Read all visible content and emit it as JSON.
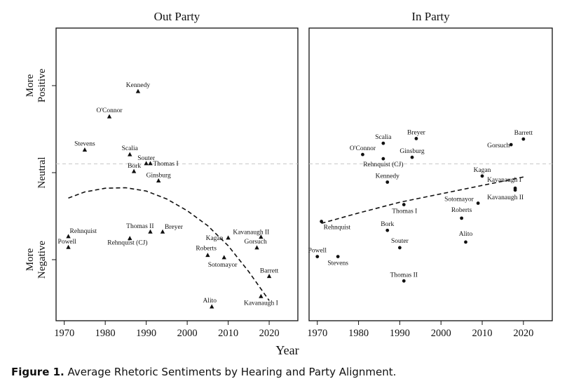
{
  "chart_data": [
    {
      "type": "scatter",
      "title": "Out Party",
      "marker": "triangle",
      "xlabel": "Year",
      "xlim": [
        1968,
        2027
      ],
      "ylim": [
        -3.35,
        2.9
      ],
      "xticks": [
        1970,
        1980,
        1990,
        2000,
        2010,
        2020
      ],
      "ytick_labels": [
        "More Positive",
        "Neutral",
        "More Negative"
      ],
      "neutral_line": 0,
      "points": [
        {
          "label": "Kennedy",
          "x": 1988,
          "y": 1.55
        },
        {
          "label": "O'Connor",
          "x": 1981,
          "y": 1.01
        },
        {
          "label": "Stevens",
          "x": 1975,
          "y": 0.3
        },
        {
          "label": "Scalia",
          "x": 1986,
          "y": 0.2
        },
        {
          "label": "Souter",
          "x": 1990,
          "y": 0.01
        },
        {
          "label": "Thomas I",
          "x": 1991,
          "y": 0.01
        },
        {
          "label": "Bork",
          "x": 1987,
          "y": -0.16
        },
        {
          "label": "Ginsburg",
          "x": 1993,
          "y": -0.36
        },
        {
          "label": "Rehnquist",
          "x": 1971,
          "y": -1.55
        },
        {
          "label": "Powell",
          "x": 1971,
          "y": -1.78
        },
        {
          "label": "Thomas II",
          "x": 1991,
          "y": -1.45
        },
        {
          "label": "Breyer",
          "x": 1994,
          "y": -1.45
        },
        {
          "label": "Rehnquist (CJ)",
          "x": 1986,
          "y": -1.59
        },
        {
          "label": "Kagan",
          "x": 2010,
          "y": -1.58
        },
        {
          "label": "Kavanaugh II",
          "x": 2018,
          "y": -1.56
        },
        {
          "label": "Roberts",
          "x": 2005,
          "y": -1.95
        },
        {
          "label": "Gorsuch",
          "x": 2017,
          "y": -1.79
        },
        {
          "label": "Sotomayor",
          "x": 2009,
          "y": -2.0
        },
        {
          "label": "Barrett",
          "x": 2020,
          "y": -2.4
        },
        {
          "label": "Alito",
          "x": 2006,
          "y": -3.05
        },
        {
          "label": "Kavanaugh I",
          "x": 2018,
          "y": -2.83
        }
      ],
      "trend": [
        {
          "x": 1971,
          "y": -0.73
        },
        {
          "x": 1975,
          "y": -0.6
        },
        {
          "x": 1980,
          "y": -0.52
        },
        {
          "x": 1985,
          "y": -0.51
        },
        {
          "x": 1990,
          "y": -0.58
        },
        {
          "x": 1995,
          "y": -0.75
        },
        {
          "x": 2000,
          "y": -1.0
        },
        {
          "x": 2005,
          "y": -1.32
        },
        {
          "x": 2010,
          "y": -1.75
        },
        {
          "x": 2015,
          "y": -2.3
        },
        {
          "x": 2020,
          "y": -2.92
        }
      ]
    },
    {
      "type": "scatter",
      "title": "In Party",
      "marker": "circle",
      "xlabel": "Year",
      "xlim": [
        1968,
        2027
      ],
      "ylim": [
        -3.35,
        2.9
      ],
      "xticks": [
        1970,
        1980,
        1990,
        2000,
        2010,
        2020
      ],
      "neutral_line": 0,
      "points": [
        {
          "label": "Breyer",
          "x": 1994,
          "y": 0.54
        },
        {
          "label": "Barrett",
          "x": 2020,
          "y": 0.53
        },
        {
          "label": "Scalia",
          "x": 1986,
          "y": 0.44
        },
        {
          "label": "Gorsuch",
          "x": 2017,
          "y": 0.41
        },
        {
          "label": "O'Connor",
          "x": 1981,
          "y": 0.2
        },
        {
          "label": "Ginsburg",
          "x": 1993,
          "y": 0.14
        },
        {
          "label": "Rehnquist (CJ)",
          "x": 1986,
          "y": 0.11
        },
        {
          "label": "Kennedy",
          "x": 1987,
          "y": -0.39
        },
        {
          "label": "Kagan",
          "x": 2010,
          "y": -0.26
        },
        {
          "label": "Kavanaugh I",
          "x": 2018,
          "y": -0.52
        },
        {
          "label": "Kavanaugh II",
          "x": 2018,
          "y": -0.56
        },
        {
          "label": "Sotomayor",
          "x": 2009,
          "y": -0.84
        },
        {
          "label": "Thomas I",
          "x": 1991,
          "y": -0.87
        },
        {
          "label": "Roberts",
          "x": 2005,
          "y": -1.16
        },
        {
          "label": "Rehnquist",
          "x": 1971,
          "y": -1.23
        },
        {
          "label": "Bork",
          "x": 1987,
          "y": -1.42
        },
        {
          "label": "Alito",
          "x": 2006,
          "y": -1.67
        },
        {
          "label": "Souter",
          "x": 1990,
          "y": -1.79
        },
        {
          "label": "Powell",
          "x": 1970,
          "y": -1.98
        },
        {
          "label": "Stevens",
          "x": 1975,
          "y": -1.98
        },
        {
          "label": "Thomas II",
          "x": 1991,
          "y": -2.5
        }
      ],
      "trend": [
        {
          "x": 1971,
          "y": -1.27
        },
        {
          "x": 1980,
          "y": -1.05
        },
        {
          "x": 1990,
          "y": -0.82
        },
        {
          "x": 2000,
          "y": -0.64
        },
        {
          "x": 2010,
          "y": -0.46
        },
        {
          "x": 2020,
          "y": -0.28
        }
      ]
    }
  ],
  "figure": {
    "xlabel": "Year",
    "ylabels": {
      "positive": [
        "More",
        "Positive"
      ],
      "neutral": "Neutral",
      "negative": [
        "More",
        "Negative"
      ]
    }
  },
  "caption": {
    "label": "Figure 1.",
    "text": " Average Rhetoric Sentiments by Hearing and Party Alignment."
  }
}
